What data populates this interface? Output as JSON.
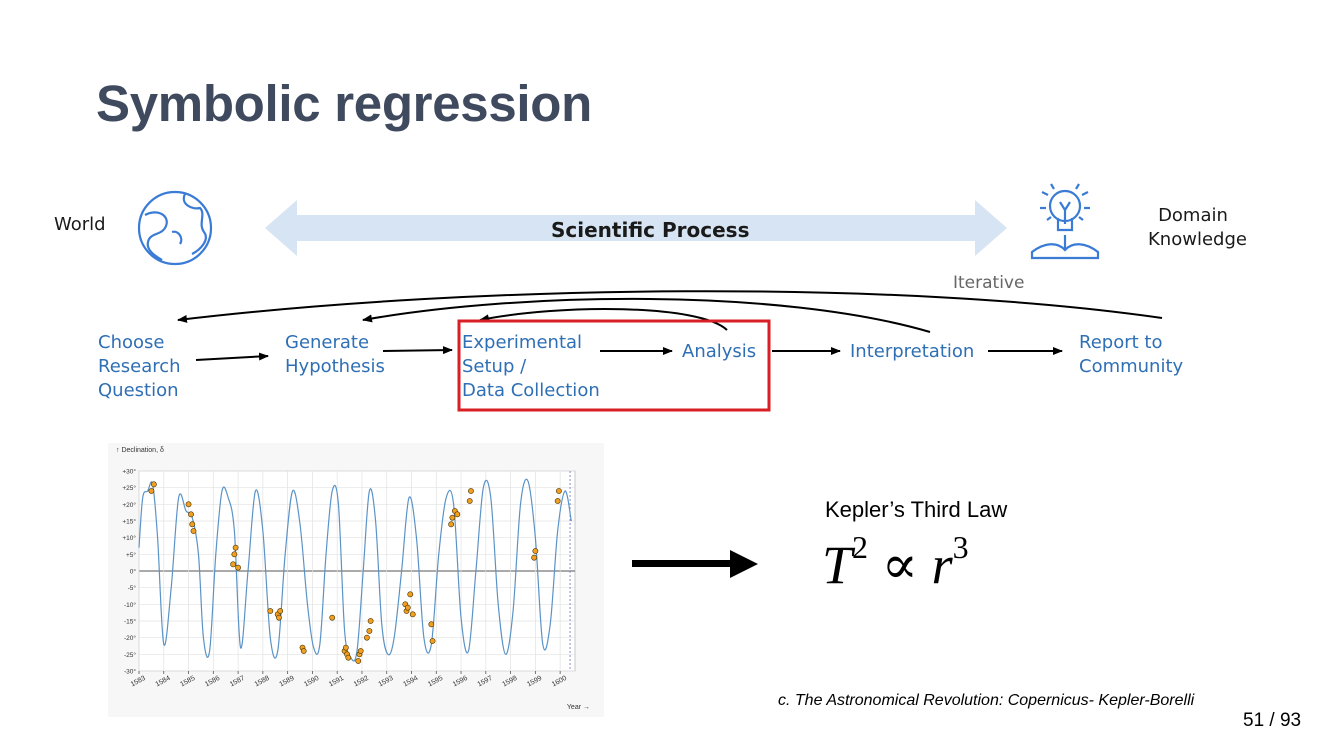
{
  "slide": {
    "title": "Symbolic regression",
    "page_number": "51 / 93"
  },
  "diagram": {
    "world_label": "World",
    "process_label": "Scientific Process",
    "domain_label_line1": "Domain",
    "domain_label_line2": "Knowledge",
    "iterative_label": "Iterative",
    "steps": [
      {
        "lines": [
          "Choose",
          "Research",
          "Question"
        ]
      },
      {
        "lines": [
          "Generate",
          "Hypothesis"
        ]
      },
      {
        "lines": [
          "Experimental",
          "Setup /",
          "Data Collection"
        ]
      },
      {
        "lines": [
          "Analysis"
        ]
      },
      {
        "lines": [
          "Interpretation"
        ]
      },
      {
        "lines": [
          "Report to",
          "Community"
        ]
      }
    ],
    "colors": {
      "accent": "#2f6fb5",
      "arrow_band": "#d6e4f3",
      "highlight_box": "#d81f26",
      "icon": "#3a7bd5"
    }
  },
  "chart_data": {
    "type": "line",
    "ylabel": "↑ Declination, δ",
    "xlabel": "Year →",
    "yticks": [
      "+30°",
      "+25°",
      "+20°",
      "+15°",
      "+10°",
      "+5°",
      "0°",
      "-5°",
      "-10°",
      "-15°",
      "-20°",
      "-25°",
      "-30°"
    ],
    "ylim": [
      -30,
      30
    ],
    "xticks": [
      "1583",
      "1584",
      "1585",
      "1586",
      "1587",
      "1588",
      "1589",
      "1590",
      "1591",
      "1592",
      "1593",
      "1594",
      "1595",
      "1596",
      "1597",
      "1598",
      "1599",
      "1600"
    ],
    "xlim": [
      1583,
      1600.6
    ],
    "series": [
      {
        "role": "curve",
        "x": [
          1583.0,
          1583.15,
          1583.35,
          1583.55,
          1583.75,
          1584.0,
          1584.3,
          1584.6,
          1584.9,
          1585.15,
          1585.4,
          1585.6,
          1585.85,
          1586.1,
          1586.35,
          1586.6,
          1586.85,
          1587.1,
          1587.4,
          1587.7,
          1588.0,
          1588.3,
          1588.6,
          1588.9,
          1589.2,
          1589.5,
          1589.8,
          1590.05,
          1590.3,
          1590.55,
          1590.8,
          1591.05,
          1591.3,
          1591.55,
          1591.8,
          1592.05,
          1592.3,
          1592.55,
          1592.8,
          1593.05,
          1593.3,
          1593.6,
          1593.9,
          1594.2,
          1594.5,
          1594.8,
          1595.1,
          1595.4,
          1595.7,
          1596.0,
          1596.3,
          1596.6,
          1596.9,
          1597.2,
          1597.5,
          1597.8,
          1598.1,
          1598.4,
          1598.7,
          1599.0,
          1599.3,
          1599.6,
          1599.9,
          1600.2,
          1600.45
        ],
        "y": [
          7,
          22,
          24,
          26,
          10,
          -22,
          -5,
          22,
          18,
          16,
          5,
          -20,
          -24,
          5,
          24,
          22,
          12,
          -23,
          0,
          24,
          12,
          -20,
          -24,
          5,
          24,
          14,
          -10,
          -23,
          -22,
          5,
          24,
          20,
          -18,
          -26,
          -24,
          0,
          24,
          15,
          -16,
          -25,
          -20,
          0,
          22,
          10,
          -20,
          -22,
          5,
          22,
          20,
          -14,
          -24,
          0,
          25,
          22,
          -10,
          -25,
          -12,
          20,
          27,
          10,
          -22,
          -16,
          12,
          24,
          15
        ]
      },
      {
        "role": "observations",
        "x": [
          1583.5,
          1583.6,
          1585.0,
          1585.1,
          1585.15,
          1585.2,
          1586.8,
          1586.85,
          1586.9,
          1587.0,
          1588.3,
          1588.6,
          1588.65,
          1588.7,
          1589.6,
          1589.65,
          1590.8,
          1591.3,
          1591.35,
          1591.4,
          1591.45,
          1591.85,
          1591.9,
          1591.95,
          1592.2,
          1592.3,
          1592.35,
          1593.75,
          1593.8,
          1593.85,
          1593.95,
          1594.05,
          1594.8,
          1594.85,
          1595.6,
          1595.65,
          1595.75,
          1595.85,
          1596.35,
          1596.4,
          1598.95,
          1599.0,
          1599.9,
          1599.95
        ],
        "y": [
          24,
          26,
          20,
          17,
          14,
          12,
          2,
          5,
          7,
          1,
          -12,
          -13,
          -14,
          -12,
          -23,
          -24,
          -14,
          -24,
          -23,
          -25,
          -26,
          -27,
          -25,
          -24,
          -20,
          -18,
          -15,
          -10,
          -12,
          -11,
          -7,
          -13,
          -16,
          -21,
          14,
          16,
          18,
          17,
          21,
          24,
          4,
          6,
          21,
          24
        ]
      }
    ]
  },
  "kepler": {
    "label": "Kepler’s Third Law",
    "formula_T": "T",
    "formula_T_exp": "2",
    "formula_prop": " ∝ ",
    "formula_r": "r",
    "formula_r_exp": "3"
  },
  "citation": "c.  The Astronomical Revolution: Copernicus- Kepler-Borelli"
}
